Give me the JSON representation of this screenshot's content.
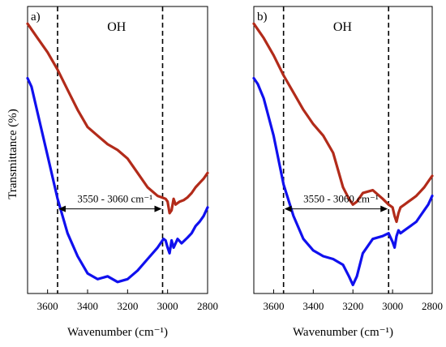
{
  "figure": {
    "ylabel": "Transmittance (%)"
  },
  "chart_data": [
    {
      "type": "line",
      "panel_label": "a)",
      "xlabel": "Wavenumber (cm⁻¹)",
      "ylabel": "Transmittance (%)",
      "xlim": [
        3700,
        2800
      ],
      "x_reversed": true,
      "y_ticks_shown": false,
      "x_ticks": [
        3600,
        3400,
        3200,
        3000,
        2800
      ],
      "grid": false,
      "dashed_lines_x": [
        3550,
        3025
      ],
      "region_label": "OH",
      "range_annotation": "3550 - 3060 cm⁻¹",
      "series": [
        {
          "color": "#b22b1a",
          "x": [
            3700,
            3680,
            3650,
            3600,
            3550,
            3500,
            3450,
            3400,
            3350,
            3300,
            3250,
            3200,
            3150,
            3100,
            3050,
            3030,
            3010,
            3000,
            2990,
            2980,
            2970,
            2960,
            2940,
            2920,
            2900,
            2880,
            2860,
            2840,
            2820,
            2800
          ],
          "y": [
            94,
            92,
            89,
            84,
            78,
            71,
            64,
            58,
            55,
            52,
            50,
            47,
            42,
            37,
            34,
            33.5,
            33,
            32,
            28,
            29,
            33,
            31,
            32,
            32.5,
            33.5,
            35,
            37,
            38.5,
            40,
            42
          ]
        },
        {
          "color": "#1010ee",
          "x": [
            3700,
            3680,
            3650,
            3600,
            3550,
            3500,
            3450,
            3400,
            3350,
            3300,
            3250,
            3200,
            3150,
            3100,
            3050,
            3020,
            3010,
            3000,
            2990,
            2980,
            2970,
            2950,
            2930,
            2900,
            2880,
            2860,
            2840,
            2820,
            2800
          ],
          "y": [
            75,
            72,
            63,
            48,
            33,
            21,
            13,
            7,
            5,
            6,
            4,
            5,
            8,
            12,
            16,
            19,
            18.5,
            16,
            14,
            18.5,
            16,
            19,
            17.5,
            19.5,
            21,
            23.5,
            25,
            27,
            30
          ]
        }
      ]
    },
    {
      "type": "line",
      "panel_label": "b)",
      "xlabel": "Wavenumber (cm⁻¹)",
      "ylabel": "",
      "xlim": [
        3700,
        2800
      ],
      "x_reversed": true,
      "y_ticks_shown": false,
      "x_ticks": [
        3600,
        3400,
        3200,
        3000,
        2800
      ],
      "grid": false,
      "dashed_lines_x": [
        3550,
        3020
      ],
      "region_label": "OH",
      "range_annotation": "3550 - 3060 cm⁻¹",
      "series": [
        {
          "color": "#b22b1a",
          "x": [
            3700,
            3680,
            3650,
            3600,
            3550,
            3500,
            3450,
            3400,
            3350,
            3300,
            3250,
            3220,
            3200,
            3180,
            3150,
            3100,
            3050,
            3020,
            3000,
            2990,
            2980,
            2970,
            2960,
            2940,
            2920,
            2900,
            2880,
            2860,
            2840,
            2820,
            2800
          ],
          "y": [
            94,
            92,
            89,
            83,
            76,
            70,
            64,
            59,
            55,
            49,
            37,
            33,
            31,
            32,
            35,
            36,
            33,
            31,
            30,
            27,
            25,
            28,
            30,
            31,
            32,
            33,
            34,
            35.5,
            37,
            39,
            41
          ]
        },
        {
          "color": "#1010ee",
          "x": [
            3700,
            3680,
            3650,
            3600,
            3550,
            3500,
            3450,
            3400,
            3350,
            3300,
            3250,
            3220,
            3200,
            3180,
            3150,
            3100,
            3050,
            3020,
            3000,
            2990,
            2980,
            2970,
            2960,
            2940,
            2920,
            2900,
            2880,
            2860,
            2840,
            2820,
            2800
          ],
          "y": [
            75,
            73,
            68,
            55,
            38,
            27,
            19,
            15,
            13,
            12,
            10,
            6,
            3,
            6,
            14,
            19,
            20,
            21,
            18,
            16,
            20,
            22,
            21,
            22,
            23,
            24,
            25,
            27,
            29,
            31,
            34
          ]
        }
      ]
    }
  ]
}
